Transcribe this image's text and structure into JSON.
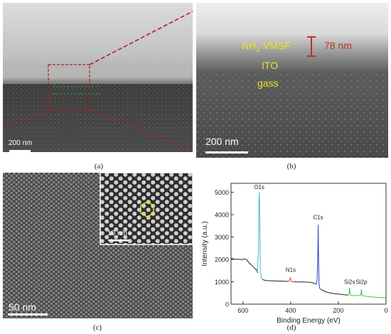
{
  "panel_a": {
    "scale_label": "200 nm",
    "caption": "(a)"
  },
  "panel_b": {
    "layer_top": "NH",
    "layer_top_sub": "2",
    "layer_top_suffix": "-VMSF",
    "layer_mid": "ITO",
    "layer_bottom": "gass",
    "thickness": "78 nm",
    "scale_label": "200 nm",
    "caption": "(b)"
  },
  "panel_c": {
    "scale_label": "50 nm",
    "inset_scale_label": "10 nm",
    "caption": "(c)"
  },
  "panel_d": {
    "caption": "(d)"
  },
  "chart_data": {
    "type": "line",
    "xlabel": "Binding Energy (eV)",
    "ylabel": "Intensity (a.u.)",
    "xlim": [
      650,
      0
    ],
    "ylim": [
      0,
      5400
    ],
    "x_ticks": [
      600,
      400,
      200,
      0
    ],
    "y_ticks": [
      0,
      1000,
      2000,
      3000,
      4000,
      5000
    ],
    "x_tick_labels": [
      "600",
      "400",
      "200",
      "0"
    ],
    "y_tick_labels": [
      "0",
      "1000",
      "2000",
      "3000",
      "4000",
      "5000"
    ],
    "grid": false,
    "series": [
      {
        "color": "#222222",
        "points": [
          [
            650,
            2050
          ],
          [
            630,
            2000
          ],
          [
            620,
            2010
          ],
          [
            605,
            1990
          ],
          [
            595,
            2020
          ],
          [
            585,
            2000
          ],
          [
            575,
            1850
          ],
          [
            565,
            1750
          ],
          [
            555,
            1650
          ],
          [
            545,
            1550
          ],
          [
            540,
            1450
          ],
          [
            537,
            1400
          ]
        ]
      },
      {
        "color": "#3fb8d8",
        "points": [
          [
            540,
            1450
          ],
          [
            535,
            2400
          ],
          [
            533,
            4600
          ],
          [
            531,
            5000
          ],
          [
            529,
            3200
          ],
          [
            527,
            1500
          ],
          [
            523,
            1150
          ],
          [
            518,
            1100
          ]
        ]
      },
      {
        "color": "#222222",
        "points": [
          [
            518,
            1100
          ],
          [
            505,
            1060
          ],
          [
            490,
            1050
          ],
          [
            470,
            1040
          ],
          [
            450,
            1030
          ],
          [
            430,
            1030
          ],
          [
            415,
            1020
          ],
          [
            410,
            1010
          ]
        ]
      },
      {
        "color": "#d85030",
        "points": [
          [
            410,
            1010
          ],
          [
            405,
            1050
          ],
          [
            401,
            1180
          ],
          [
            398,
            1060
          ],
          [
            394,
            990
          ],
          [
            388,
            1000
          ]
        ]
      },
      {
        "color": "#222222",
        "points": [
          [
            388,
            1000
          ],
          [
            370,
            990
          ],
          [
            350,
            995
          ],
          [
            330,
            985
          ],
          [
            310,
            960
          ],
          [
            300,
            930
          ],
          [
            292,
            900
          ]
        ]
      },
      {
        "color": "#3040c0",
        "points": [
          [
            292,
            900
          ],
          [
            289,
            1100
          ],
          [
            286,
            2200
          ],
          [
            284.5,
            3550
          ],
          [
            283,
            2100
          ],
          [
            281,
            900
          ],
          [
            278,
            700
          ],
          [
            272,
            650
          ]
        ]
      },
      {
        "color": "#222222",
        "points": [
          [
            272,
            650
          ],
          [
            255,
            560
          ],
          [
            235,
            500
          ],
          [
            210,
            460
          ],
          [
            190,
            440
          ],
          [
            175,
            420
          ],
          [
            165,
            410
          ],
          [
            158,
            405
          ]
        ]
      },
      {
        "color": "#40c050",
        "points": [
          [
            158,
            405
          ],
          [
            155,
            460
          ],
          [
            153,
            730
          ],
          [
            151,
            470
          ],
          [
            147,
            390
          ],
          [
            138,
            380
          ],
          [
            128,
            385
          ],
          [
            118,
            390
          ],
          [
            106,
            395
          ],
          [
            103,
            660
          ],
          [
            101,
            430
          ],
          [
            96,
            370
          ],
          [
            75,
            340
          ],
          [
            45,
            310
          ],
          [
            20,
            290
          ],
          [
            0,
            280
          ]
        ]
      }
    ],
    "annotations": [
      {
        "text": "O1s",
        "x": 532,
        "y": 5150,
        "color": "#222222"
      },
      {
        "text": "N1s",
        "x": 400,
        "y": 1450,
        "color": "#222222"
      },
      {
        "text": "C1s",
        "x": 284.5,
        "y": 3800,
        "color": "#222222"
      },
      {
        "text": "Si2s",
        "x": 153,
        "y": 900,
        "color": "#222222"
      },
      {
        "text": "Si2p",
        "x": 103,
        "y": 900,
        "color": "#222222"
      }
    ]
  }
}
